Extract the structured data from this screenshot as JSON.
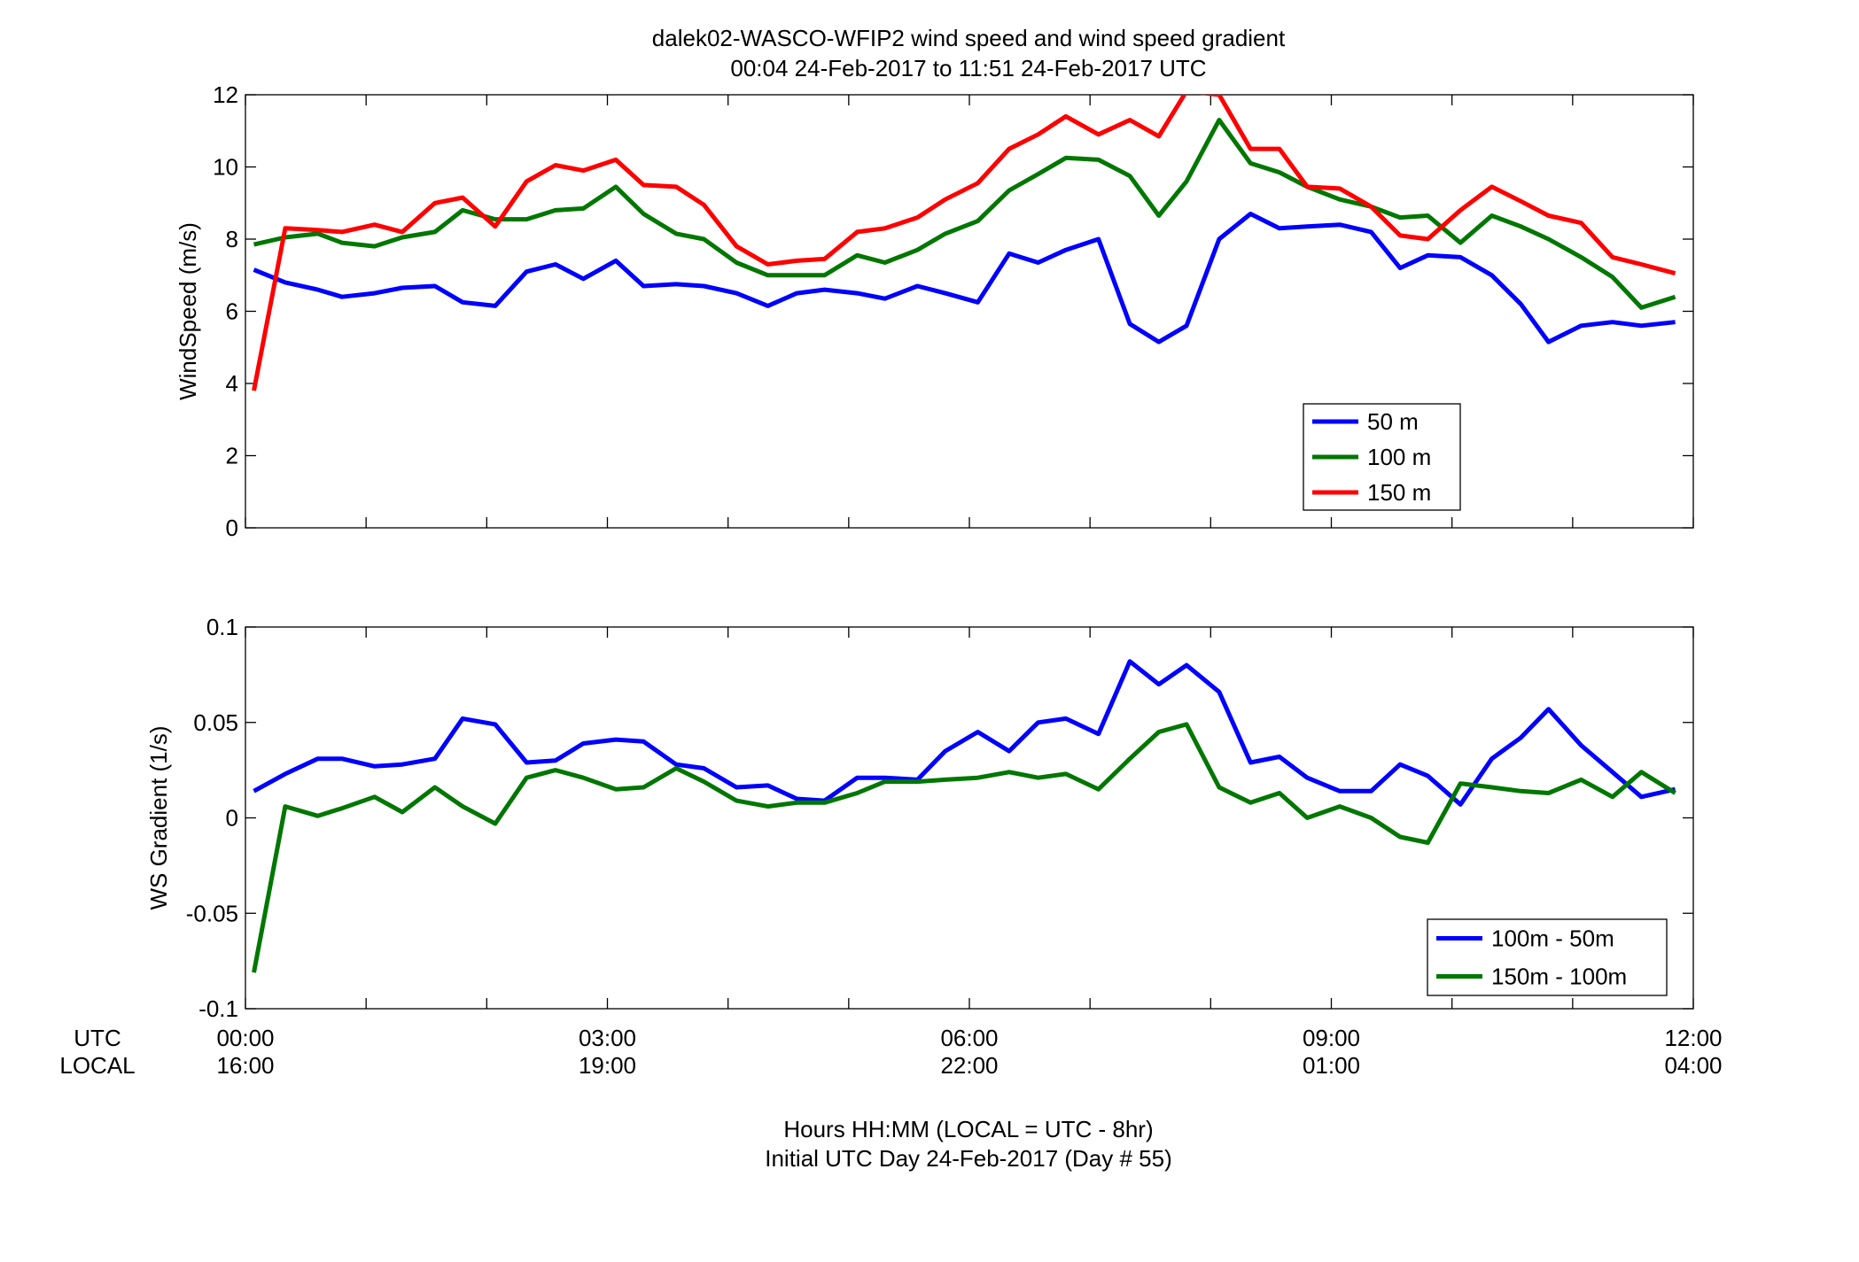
{
  "title_line1": "dalek02-WASCO-WFIP2  wind speed and wind speed gradient",
  "title_line2": "00:04 24-Feb-2017 to 11:51 24-Feb-2017  UTC",
  "xaxis": {
    "utc_label": "UTC",
    "local_label": "LOCAL",
    "utc_ticks": [
      "00:00",
      "03:00",
      "06:00",
      "09:00",
      "12:00"
    ],
    "local_ticks": [
      "16:00",
      "19:00",
      "22:00",
      "01:00",
      "04:00"
    ],
    "xlabel_line1": "Hours HH:MM  (LOCAL = UTC - 8hr)",
    "xlabel_line2": "Initial UTC Day 24-Feb-2017 (Day # 55)"
  },
  "chart_data": [
    {
      "type": "line",
      "ylabel": "WindSpeed (m/s)",
      "xlim": [
        0,
        12
      ],
      "ylim": [
        0,
        12
      ],
      "yticks": [
        "0",
        "2",
        "4",
        "6",
        "8",
        "10",
        "12"
      ],
      "grid": false,
      "legend_position": "lower-right",
      "x_hours": [
        0.07,
        0.33,
        0.6,
        0.8,
        1.07,
        1.3,
        1.57,
        1.8,
        2.07,
        2.33,
        2.57,
        2.8,
        3.07,
        3.3,
        3.57,
        3.8,
        4.07,
        4.33,
        4.57,
        4.8,
        5.07,
        5.3,
        5.57,
        5.8,
        6.07,
        6.33,
        6.57,
        6.8,
        7.07,
        7.33,
        7.57,
        7.8,
        8.07,
        8.33,
        8.57,
        8.8,
        9.07,
        9.33,
        9.57,
        9.8,
        10.07,
        10.33,
        10.57,
        10.8,
        11.07,
        11.33,
        11.57,
        11.85
      ],
      "series": [
        {
          "name": "50 m",
          "color": "#0000ff",
          "values": [
            7.15,
            6.8,
            6.6,
            6.4,
            6.5,
            6.65,
            6.7,
            6.25,
            6.15,
            7.1,
            7.3,
            6.9,
            7.4,
            6.7,
            6.75,
            6.7,
            6.5,
            6.15,
            6.5,
            6.6,
            6.5,
            6.35,
            6.7,
            6.5,
            6.25,
            7.6,
            7.35,
            7.7,
            8.0,
            5.65,
            5.15,
            5.6,
            8.0,
            8.7,
            8.3,
            8.35,
            8.4,
            8.2,
            7.2,
            7.55,
            7.5,
            7.0,
            6.2,
            5.15,
            5.6,
            5.7,
            5.6,
            5.7
          ]
        },
        {
          "name": "100 m",
          "color": "#007700",
          "values": [
            7.85,
            8.05,
            8.15,
            7.9,
            7.8,
            8.05,
            8.2,
            8.8,
            8.55,
            8.55,
            8.8,
            8.85,
            9.45,
            8.7,
            8.15,
            8.0,
            7.35,
            7.0,
            7.0,
            7.0,
            7.55,
            7.35,
            7.7,
            8.15,
            8.5,
            9.35,
            9.8,
            10.25,
            10.2,
            9.75,
            8.65,
            9.6,
            11.3,
            10.1,
            9.85,
            9.45,
            9.1,
            8.9,
            8.6,
            8.65,
            7.9,
            8.65,
            8.35,
            8.0,
            7.5,
            6.95,
            6.1,
            6.4
          ]
        },
        {
          "name": "150 m",
          "color": "#ff0000",
          "values": [
            3.8,
            8.3,
            8.25,
            8.2,
            8.4,
            8.2,
            9.0,
            9.15,
            8.35,
            9.6,
            10.05,
            9.9,
            10.2,
            9.5,
            9.45,
            8.95,
            7.8,
            7.3,
            7.4,
            7.45,
            8.2,
            8.3,
            8.6,
            9.1,
            9.55,
            10.5,
            10.9,
            11.4,
            10.9,
            11.3,
            10.85,
            12.1,
            12.0,
            10.5,
            10.5,
            9.45,
            9.4,
            8.9,
            8.1,
            8.0,
            8.8,
            9.45,
            9.05,
            8.65,
            8.45,
            7.5,
            7.3,
            7.05
          ]
        }
      ]
    },
    {
      "type": "line",
      "ylabel": "WS Gradient (1/s)",
      "xlim": [
        0,
        12
      ],
      "ylim": [
        -0.1,
        0.1
      ],
      "yticks": [
        "-0.1",
        "-0.05",
        "0",
        "0.05",
        "0.1"
      ],
      "grid": false,
      "legend_position": "lower-right",
      "x_hours": [
        0.07,
        0.33,
        0.6,
        0.8,
        1.07,
        1.3,
        1.57,
        1.8,
        2.07,
        2.33,
        2.57,
        2.8,
        3.07,
        3.3,
        3.57,
        3.8,
        4.07,
        4.33,
        4.57,
        4.8,
        5.07,
        5.3,
        5.57,
        5.8,
        6.07,
        6.33,
        6.57,
        6.8,
        7.07,
        7.33,
        7.57,
        7.8,
        8.07,
        8.33,
        8.57,
        8.8,
        9.07,
        9.33,
        9.57,
        9.8,
        10.07,
        10.33,
        10.57,
        10.8,
        11.07,
        11.33,
        11.57,
        11.85
      ],
      "series": [
        {
          "name": "100m - 50m",
          "color": "#0000ff",
          "values": [
            0.014,
            0.023,
            0.031,
            0.031,
            0.027,
            0.028,
            0.031,
            0.052,
            0.049,
            0.029,
            0.03,
            0.039,
            0.041,
            0.04,
            0.028,
            0.026,
            0.016,
            0.017,
            0.01,
            0.009,
            0.021,
            0.021,
            0.02,
            0.035,
            0.045,
            0.035,
            0.05,
            0.052,
            0.044,
            0.082,
            0.07,
            0.08,
            0.066,
            0.029,
            0.032,
            0.021,
            0.014,
            0.014,
            0.028,
            0.022,
            0.007,
            0.031,
            0.042,
            0.057,
            0.038,
            0.024,
            0.011,
            0.015
          ]
        },
        {
          "name": "150m - 100m",
          "color": "#007700",
          "values": [
            -0.081,
            0.006,
            0.001,
            0.005,
            0.011,
            0.003,
            0.016,
            0.006,
            -0.003,
            0.021,
            0.025,
            0.021,
            0.015,
            0.016,
            0.026,
            0.019,
            0.009,
            0.006,
            0.008,
            0.008,
            0.013,
            0.019,
            0.019,
            0.02,
            0.021,
            0.024,
            0.021,
            0.023,
            0.015,
            0.031,
            0.045,
            0.049,
            0.016,
            0.008,
            0.013,
            0.0,
            0.006,
            0.0,
            -0.01,
            -0.013,
            0.018,
            0.016,
            0.014,
            0.013,
            0.02,
            0.011,
            0.024,
            0.013
          ]
        }
      ]
    }
  ]
}
